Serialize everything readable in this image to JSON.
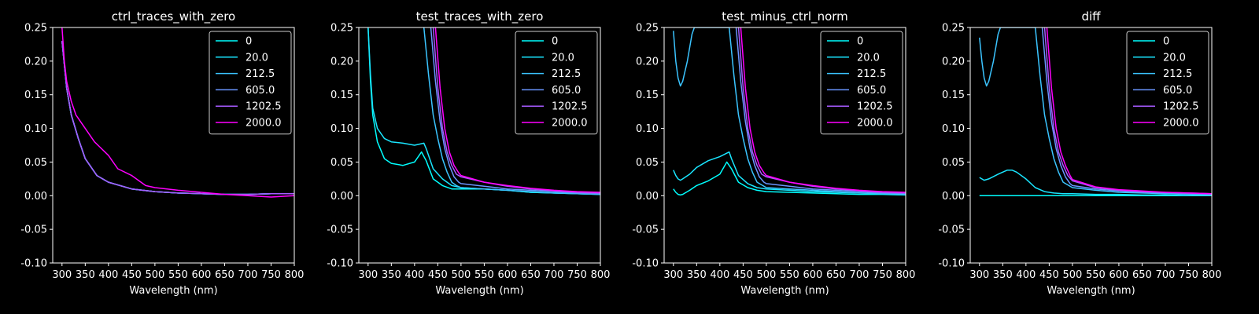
{
  "figure": {
    "background": "#000000",
    "foreground": "#ffffff"
  },
  "chart_data": [
    {
      "type": "line",
      "title": "ctrl_traces_with_zero",
      "xlabel": "Wavelength (nm)",
      "ylabel": "",
      "xlim": [
        280,
        800
      ],
      "ylim": [
        -0.1,
        0.25
      ],
      "xticks": [
        300,
        350,
        400,
        450,
        500,
        550,
        600,
        650,
        700,
        750,
        800
      ],
      "yticks": [
        -0.1,
        -0.05,
        0.0,
        0.05,
        0.1,
        0.15,
        0.2,
        0.25
      ],
      "legend_position": "top-right",
      "series": [
        {
          "name": "0",
          "color": "#00ffff",
          "x": [
            300,
            310,
            320,
            335,
            350,
            375,
            400,
            450,
            500,
            550,
            600,
            650,
            700,
            750,
            800
          ],
          "y": [
            0.23,
            0.16,
            0.12,
            0.085,
            0.055,
            0.03,
            0.02,
            0.01,
            0.006,
            0.004,
            0.003,
            0.002,
            0.002,
            0.003,
            0.003
          ]
        },
        {
          "name": "20.0",
          "color": "#19e6ff",
          "x": [
            300,
            310,
            320,
            335,
            350,
            375,
            400,
            450,
            500,
            550,
            600,
            650,
            700,
            750,
            800
          ],
          "y": [
            0.23,
            0.16,
            0.12,
            0.085,
            0.055,
            0.03,
            0.02,
            0.01,
            0.006,
            0.004,
            0.003,
            0.002,
            0.002,
            0.003,
            0.003
          ]
        },
        {
          "name": "212.5",
          "color": "#3bc4ff",
          "x": [
            300,
            310,
            320,
            335,
            350,
            375,
            400,
            450,
            500,
            550,
            600,
            650,
            700,
            750,
            800
          ],
          "y": [
            0.23,
            0.16,
            0.12,
            0.085,
            0.055,
            0.03,
            0.02,
            0.01,
            0.006,
            0.004,
            0.003,
            0.002,
            0.002,
            0.003,
            0.003
          ]
        },
        {
          "name": "605.0",
          "color": "#6a95ff",
          "x": [
            300,
            310,
            320,
            335,
            350,
            375,
            400,
            450,
            500,
            550,
            600,
            650,
            700,
            750,
            800
          ],
          "y": [
            0.23,
            0.16,
            0.12,
            0.085,
            0.055,
            0.03,
            0.02,
            0.01,
            0.006,
            0.004,
            0.003,
            0.002,
            0.002,
            0.003,
            0.003
          ]
        },
        {
          "name": "1202.5",
          "color": "#a65aff",
          "x": [
            300,
            310,
            320,
            335,
            350,
            375,
            400,
            450,
            500,
            550,
            600,
            650,
            700,
            750,
            800
          ],
          "y": [
            0.23,
            0.16,
            0.12,
            0.085,
            0.055,
            0.03,
            0.02,
            0.01,
            0.006,
            0.004,
            0.003,
            0.002,
            0.002,
            0.003,
            0.003
          ]
        },
        {
          "name": "2000.0",
          "color": "#ff00ff",
          "x": [
            300,
            305,
            310,
            320,
            330,
            350,
            370,
            400,
            420,
            450,
            480,
            500,
            550,
            600,
            650,
            700,
            750,
            800
          ],
          "y": [
            0.25,
            0.2,
            0.17,
            0.14,
            0.12,
            0.1,
            0.08,
            0.06,
            0.04,
            0.03,
            0.015,
            0.012,
            0.008,
            0.005,
            0.002,
            0.0,
            -0.002,
            0.0
          ]
        }
      ]
    },
    {
      "type": "line",
      "title": "test_traces_with_zero",
      "xlabel": "Wavelength (nm)",
      "ylabel": "",
      "xlim": [
        280,
        800
      ],
      "ylim": [
        -0.1,
        0.25
      ],
      "xticks": [
        300,
        350,
        400,
        450,
        500,
        550,
        600,
        650,
        700,
        750,
        800
      ],
      "yticks": [
        -0.1,
        -0.05,
        0.0,
        0.05,
        0.1,
        0.15,
        0.2,
        0.25
      ],
      "legend_position": "top-right",
      "series": [
        {
          "name": "0",
          "color": "#00ffff",
          "x": [
            300,
            305,
            310,
            320,
            335,
            350,
            375,
            400,
            415,
            425,
            440,
            460,
            480,
            500,
            550,
            600,
            650,
            700,
            750,
            800
          ],
          "y": [
            0.25,
            0.17,
            0.12,
            0.08,
            0.055,
            0.048,
            0.045,
            0.05,
            0.065,
            0.052,
            0.025,
            0.015,
            0.01,
            0.01,
            0.01,
            0.008,
            0.005,
            0.004,
            0.003,
            0.002
          ]
        },
        {
          "name": "20.0",
          "color": "#19e6ff",
          "x": [
            300,
            305,
            310,
            320,
            335,
            350,
            375,
            400,
            420,
            425,
            440,
            460,
            480,
            500,
            550,
            600,
            650,
            700,
            750,
            800
          ],
          "y": [
            0.25,
            0.18,
            0.13,
            0.1,
            0.085,
            0.08,
            0.078,
            0.075,
            0.078,
            0.07,
            0.04,
            0.025,
            0.015,
            0.012,
            0.01,
            0.008,
            0.005,
            0.004,
            0.003,
            0.002
          ]
        },
        {
          "name": "212.5",
          "color": "#3bc4ff",
          "x": [
            420,
            430,
            440,
            450,
            460,
            470,
            480,
            490,
            500,
            550,
            600,
            650,
            700,
            750,
            800
          ],
          "y": [
            0.25,
            0.18,
            0.12,
            0.085,
            0.055,
            0.035,
            0.02,
            0.015,
            0.012,
            0.01,
            0.008,
            0.006,
            0.004,
            0.003,
            0.002
          ]
        },
        {
          "name": "605.0",
          "color": "#6a95ff",
          "x": [
            435,
            445,
            455,
            465,
            475,
            485,
            495,
            500,
            550,
            600,
            650,
            700,
            750,
            800
          ],
          "y": [
            0.25,
            0.17,
            0.11,
            0.07,
            0.045,
            0.028,
            0.02,
            0.018,
            0.014,
            0.01,
            0.008,
            0.006,
            0.004,
            0.003
          ]
        },
        {
          "name": "1202.5",
          "color": "#a65aff",
          "x": [
            440,
            450,
            460,
            470,
            480,
            490,
            500,
            550,
            600,
            650,
            700,
            750,
            800
          ],
          "y": [
            0.25,
            0.16,
            0.1,
            0.065,
            0.045,
            0.032,
            0.028,
            0.02,
            0.014,
            0.01,
            0.007,
            0.005,
            0.004
          ]
        },
        {
          "name": "2000.0",
          "color": "#ff00ff",
          "x": [
            445,
            455,
            465,
            475,
            485,
            495,
            500,
            550,
            600,
            650,
            700,
            750,
            800
          ],
          "y": [
            0.25,
            0.16,
            0.1,
            0.065,
            0.045,
            0.034,
            0.03,
            0.02,
            0.015,
            0.011,
            0.008,
            0.006,
            0.005
          ]
        }
      ]
    },
    {
      "type": "line",
      "title": "test_minus_ctrl_norm",
      "xlabel": "Wavelength (nm)",
      "ylabel": "",
      "xlim": [
        280,
        800
      ],
      "ylim": [
        -0.1,
        0.25
      ],
      "xticks": [
        300,
        350,
        400,
        450,
        500,
        550,
        600,
        650,
        700,
        750,
        800
      ],
      "yticks": [
        -0.1,
        -0.05,
        0.0,
        0.05,
        0.1,
        0.15,
        0.2,
        0.25
      ],
      "legend_position": "top-right",
      "series": [
        {
          "name": "0",
          "color": "#00ffff",
          "x": [
            300,
            305,
            310,
            315,
            320,
            335,
            350,
            375,
            400,
            415,
            425,
            440,
            460,
            480,
            500,
            550,
            600,
            650,
            700,
            750,
            800
          ],
          "y": [
            0.01,
            0.005,
            0.002,
            0.001,
            0.002,
            0.008,
            0.015,
            0.022,
            0.032,
            0.05,
            0.04,
            0.02,
            0.012,
            0.008,
            0.006,
            0.005,
            0.004,
            0.003,
            0.002,
            0.002,
            0.001
          ]
        },
        {
          "name": "20.0",
          "color": "#19e6ff",
          "x": [
            300,
            305,
            310,
            315,
            320,
            335,
            350,
            375,
            400,
            420,
            425,
            440,
            460,
            480,
            500,
            550,
            600,
            650,
            700,
            750,
            800
          ],
          "y": [
            0.038,
            0.03,
            0.025,
            0.023,
            0.025,
            0.032,
            0.042,
            0.052,
            0.058,
            0.065,
            0.055,
            0.03,
            0.018,
            0.012,
            0.01,
            0.008,
            0.006,
            0.005,
            0.004,
            0.003,
            0.002
          ]
        },
        {
          "name": "212.5",
          "color": "#3bc4ff",
          "x": [
            300,
            305,
            310,
            315,
            320,
            330,
            340,
            345,
            420,
            430,
            440,
            450,
            460,
            470,
            480,
            500,
            550,
            600,
            650,
            700,
            750,
            800
          ],
          "y": [
            0.245,
            0.2,
            0.175,
            0.163,
            0.17,
            0.2,
            0.24,
            0.25,
            0.25,
            0.18,
            0.12,
            0.085,
            0.055,
            0.035,
            0.02,
            0.012,
            0.01,
            0.008,
            0.006,
            0.004,
            0.003,
            0.002
          ]
        },
        {
          "name": "605.0",
          "color": "#6a95ff",
          "x": [
            435,
            445,
            455,
            465,
            475,
            485,
            495,
            500,
            550,
            600,
            650,
            700,
            750,
            800
          ],
          "y": [
            0.25,
            0.17,
            0.11,
            0.07,
            0.045,
            0.028,
            0.02,
            0.018,
            0.014,
            0.01,
            0.008,
            0.006,
            0.004,
            0.003
          ]
        },
        {
          "name": "1202.5",
          "color": "#a65aff",
          "x": [
            440,
            450,
            460,
            470,
            480,
            490,
            500,
            550,
            600,
            650,
            700,
            750,
            800
          ],
          "y": [
            0.25,
            0.16,
            0.1,
            0.065,
            0.045,
            0.032,
            0.028,
            0.02,
            0.014,
            0.01,
            0.007,
            0.005,
            0.004
          ]
        },
        {
          "name": "2000.0",
          "color": "#ff00ff",
          "x": [
            445,
            455,
            465,
            475,
            485,
            495,
            500,
            550,
            600,
            650,
            700,
            750,
            800
          ],
          "y": [
            0.25,
            0.16,
            0.1,
            0.065,
            0.045,
            0.034,
            0.03,
            0.02,
            0.015,
            0.011,
            0.008,
            0.006,
            0.005
          ]
        }
      ]
    },
    {
      "type": "line",
      "title": "diff",
      "xlabel": "Wavelength (nm)",
      "ylabel": "",
      "xlim": [
        280,
        800
      ],
      "ylim": [
        -0.1,
        0.25
      ],
      "xticks": [
        300,
        350,
        400,
        450,
        500,
        550,
        600,
        650,
        700,
        750,
        800
      ],
      "yticks": [
        -0.1,
        -0.05,
        0.0,
        0.05,
        0.1,
        0.15,
        0.2,
        0.25
      ],
      "legend_position": "top-right",
      "series": [
        {
          "name": "0",
          "color": "#00ffff",
          "x": [
            300,
            800
          ],
          "y": [
            0.0,
            0.0
          ]
        },
        {
          "name": "20.0",
          "color": "#19e6ff",
          "x": [
            300,
            310,
            320,
            340,
            360,
            370,
            380,
            400,
            420,
            440,
            460,
            480,
            500,
            550,
            600,
            650,
            700,
            750,
            800
          ],
          "y": [
            0.027,
            0.023,
            0.025,
            0.032,
            0.038,
            0.038,
            0.035,
            0.025,
            0.012,
            0.006,
            0.004,
            0.003,
            0.003,
            0.002,
            0.002,
            0.001,
            0.001,
            0.0,
            0.0
          ]
        },
        {
          "name": "212.5",
          "color": "#3bc4ff",
          "x": [
            300,
            305,
            310,
            315,
            320,
            330,
            340,
            345,
            420,
            430,
            440,
            450,
            460,
            470,
            480,
            500,
            550,
            600,
            650,
            700,
            750,
            800
          ],
          "y": [
            0.235,
            0.2,
            0.175,
            0.163,
            0.17,
            0.2,
            0.24,
            0.25,
            0.25,
            0.18,
            0.12,
            0.085,
            0.055,
            0.035,
            0.02,
            0.012,
            0.008,
            0.005,
            0.004,
            0.003,
            0.002,
            0.001
          ]
        },
        {
          "name": "605.0",
          "color": "#6a95ff",
          "x": [
            435,
            445,
            455,
            465,
            475,
            485,
            495,
            500,
            550,
            600,
            650,
            700,
            750,
            800
          ],
          "y": [
            0.25,
            0.17,
            0.11,
            0.07,
            0.045,
            0.028,
            0.018,
            0.015,
            0.01,
            0.007,
            0.005,
            0.004,
            0.003,
            0.002
          ]
        },
        {
          "name": "1202.5",
          "color": "#a65aff",
          "x": [
            440,
            450,
            460,
            470,
            480,
            490,
            500,
            550,
            600,
            650,
            700,
            750,
            800
          ],
          "y": [
            0.25,
            0.16,
            0.1,
            0.065,
            0.045,
            0.03,
            0.022,
            0.012,
            0.008,
            0.006,
            0.005,
            0.004,
            0.003
          ]
        },
        {
          "name": "2000.0",
          "color": "#ff00ff",
          "x": [
            445,
            455,
            465,
            475,
            485,
            495,
            500,
            550,
            600,
            650,
            700,
            750,
            800
          ],
          "y": [
            0.25,
            0.16,
            0.1,
            0.065,
            0.045,
            0.03,
            0.024,
            0.013,
            0.009,
            0.007,
            0.005,
            0.004,
            0.003
          ]
        }
      ]
    }
  ]
}
